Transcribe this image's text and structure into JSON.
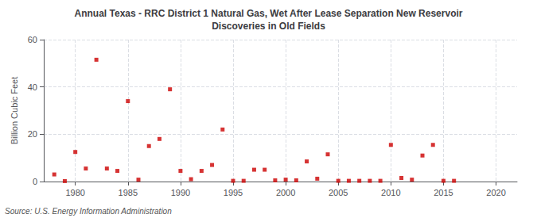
{
  "chart_data": {
    "type": "scatter",
    "title": "Annual Texas - RRC District 1 Natural Gas, Wet After Lease Separation New Reservoir\nDiscoveries in Old Fields",
    "ylabel": "Billion Cubic Feet",
    "annotation": "Source: U.S. Energy Information Administration",
    "color": "#cc0000",
    "marker": "square",
    "grid": true,
    "xlim": [
      1977,
      2022
    ],
    "ylim": [
      0,
      60
    ],
    "xticks": [
      1980,
      1985,
      1990,
      1995,
      2000,
      2005,
      2010,
      2015,
      2020
    ],
    "yticks": [
      0,
      20,
      40,
      60
    ],
    "x": [
      1978,
      1979,
      1980,
      1981,
      1982,
      1983,
      1984,
      1985,
      1986,
      1987,
      1988,
      1989,
      1990,
      1991,
      1992,
      1993,
      1994,
      1995,
      1996,
      1997,
      1998,
      1999,
      2000,
      2001,
      2002,
      2003,
      2004,
      2005,
      2006,
      2007,
      2008,
      2009,
      2010,
      2011,
      2012,
      2013,
      2014,
      2015,
      2016
    ],
    "values": [
      3.0,
      0.2,
      12.5,
      5.5,
      51.5,
      5.5,
      4.5,
      34.0,
      0.8,
      15.0,
      18.0,
      39.0,
      4.5,
      1.0,
      4.5,
      7.0,
      22.0,
      0.3,
      0.3,
      5.0,
      5.0,
      0.5,
      0.8,
      0.5,
      8.5,
      1.2,
      11.5,
      0.3,
      0.3,
      0.3,
      0.3,
      0.3,
      15.5,
      1.5,
      0.8,
      11.0,
      15.5,
      0.3,
      0.3
    ]
  }
}
